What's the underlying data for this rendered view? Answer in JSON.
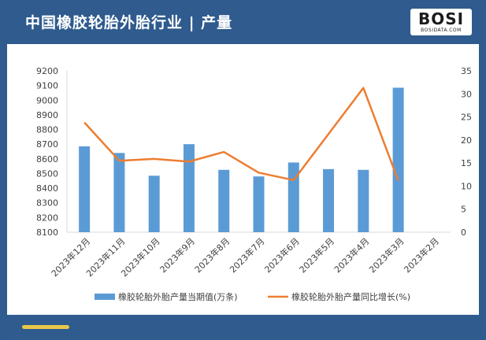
{
  "header": {
    "title": "中国橡胶轮胎外胎行业 | 产量"
  },
  "logo": {
    "main": "BOSI",
    "sub": "BOSIDATA.COM"
  },
  "colors": {
    "background": "#2f5b8e",
    "bar": "#5b9bd5",
    "line": "#ed7d31",
    "footer_accent": "#e8c64a"
  },
  "chart_data": {
    "type": "bar",
    "categories": [
      "2023年12月",
      "2023年11月",
      "2023年10月",
      "2023年9月",
      "2023年8月",
      "2023年7月",
      "2023年6月",
      "2023年5月",
      "2023年4月",
      "2023年3月",
      "2023年2月"
    ],
    "series": [
      {
        "name": "橡胶轮胎外胎产量当期值(万条)",
        "type": "bar",
        "axis": "left",
        "values": [
          8685,
          8640,
          8485,
          8700,
          8525,
          8480,
          8575,
          8530,
          8525,
          9085,
          null
        ]
      },
      {
        "name": "橡胶轮胎外胎产量同比增长(%)",
        "type": "line",
        "axis": "right",
        "values": [
          23.8,
          15.5,
          15.9,
          15.3,
          17.4,
          12.9,
          11.3,
          null,
          31.3,
          11.2,
          null
        ]
      }
    ],
    "y_left": {
      "min": 8100,
      "max": 9200,
      "ticks": [
        8100,
        8200,
        8300,
        8400,
        8500,
        8600,
        8700,
        8800,
        8900,
        9000,
        9100,
        9200
      ]
    },
    "y_right": {
      "min": 0,
      "max": 35,
      "ticks": [
        0,
        5,
        10,
        15,
        20,
        25,
        30,
        35
      ]
    },
    "grid": false,
    "legend_position": "bottom"
  }
}
